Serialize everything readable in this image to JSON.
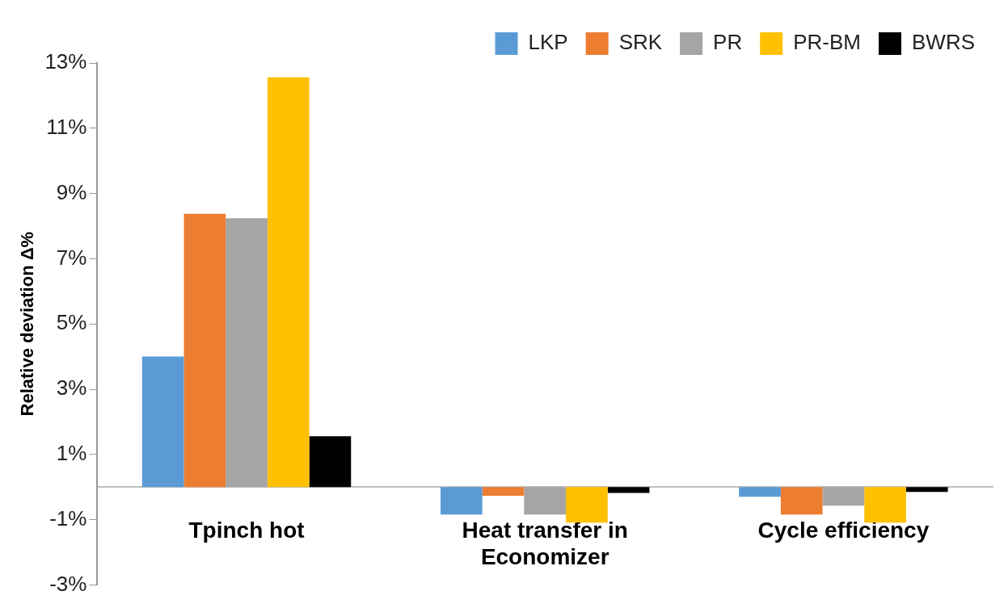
{
  "chart_data": {
    "type": "bar",
    "ylabel": "Relative deviation Δ%",
    "categories": [
      "Tpinch hot",
      "Heat transfer in Economizer",
      "Cycle efficiency"
    ],
    "series": [
      {
        "name": "LKP",
        "color": "#5b9bd5",
        "values": [
          4.0,
          -0.84,
          -0.3
        ]
      },
      {
        "name": "SRK",
        "color": "#ed7d31",
        "values": [
          8.38,
          -0.27,
          -0.84
        ]
      },
      {
        "name": "PR",
        "color": "#a5a5a5",
        "values": [
          8.24,
          -0.84,
          -0.57
        ]
      },
      {
        "name": "PR-BM",
        "color": "#ffc000",
        "values": [
          12.56,
          -1.09,
          -1.09
        ]
      },
      {
        "name": "BWRS",
        "color": "#000000",
        "values": [
          1.56,
          -0.18,
          -0.15
        ]
      }
    ],
    "ylim": [
      -3,
      13
    ],
    "yticks": [
      {
        "value": -3,
        "label": "-3%"
      },
      {
        "value": -1,
        "label": "-1%"
      },
      {
        "value": 1,
        "label": "1%"
      },
      {
        "value": 3,
        "label": "3%"
      },
      {
        "value": 5,
        "label": "5%"
      },
      {
        "value": 7,
        "label": "7%"
      },
      {
        "value": 9,
        "label": "9%"
      },
      {
        "value": 11,
        "label": "11%"
      },
      {
        "value": 13,
        "label": "13%"
      }
    ],
    "grid": false,
    "legend": "top right"
  }
}
